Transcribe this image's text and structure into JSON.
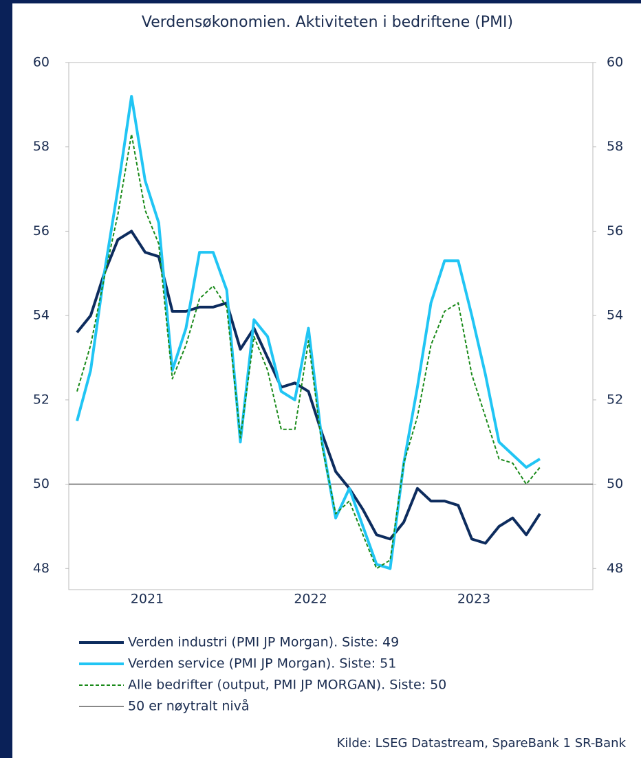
{
  "chart_data": {
    "type": "line",
    "title": "Verdensøkonomien. Aktiviteten i bedriftene (PMI)",
    "source": "Kilde: LSEG Datastream, SpareBank 1 SR-Bank",
    "categories": [
      null,
      null,
      null,
      null,
      null,
      "2021",
      null,
      null,
      null,
      null,
      null,
      null,
      null,
      null,
      null,
      null,
      null,
      "2022",
      null,
      null,
      null,
      null,
      null,
      null,
      null,
      null,
      null,
      null,
      null,
      "2023",
      null,
      null,
      null,
      null,
      null
    ],
    "series": [
      {
        "name": "Verden industri (PMI JP Morgan). Siste: 49",
        "color": "#0d2c5e",
        "line_style": "solid",
        "values": [
          53.6,
          54.0,
          55.0,
          55.8,
          56.0,
          55.5,
          55.4,
          54.1,
          54.1,
          54.2,
          54.2,
          54.3,
          53.2,
          53.7,
          53.0,
          52.3,
          52.4,
          52.2,
          51.2,
          50.3,
          49.9,
          49.4,
          48.8,
          48.7,
          49.1,
          49.9,
          49.6,
          49.6,
          49.5,
          48.7,
          48.6,
          49.0,
          49.2,
          48.8,
          49.3
        ]
      },
      {
        "name": "Verden service (PMI JP Morgan). Siste: 51",
        "color": "#21c5f4",
        "line_style": "solid",
        "values": [
          51.5,
          52.7,
          55.0,
          57.0,
          59.2,
          57.2,
          56.2,
          52.7,
          53.7,
          55.5,
          55.5,
          54.6,
          51.0,
          53.9,
          53.5,
          52.2,
          52.0,
          53.7,
          51.0,
          49.2,
          49.9,
          49.0,
          48.1,
          48.0,
          50.5,
          52.3,
          54.3,
          55.3,
          55.3,
          54.0,
          52.6,
          51.0,
          50.7,
          50.4,
          50.6
        ]
      },
      {
        "name": "Alle bedrifter (output, PMI JP MORGAN). Siste: 50",
        "color": "#1a8a1a",
        "line_style": "dashed",
        "values": [
          52.2,
          53.3,
          54.9,
          56.4,
          58.3,
          56.5,
          55.7,
          52.5,
          53.3,
          54.4,
          54.7,
          54.2,
          51.1,
          53.5,
          52.7,
          51.3,
          51.3,
          53.4,
          50.9,
          49.3,
          49.6,
          48.8,
          48.0,
          48.2,
          50.5,
          51.6,
          53.3,
          54.1,
          54.3,
          52.6,
          51.6,
          50.6,
          50.5,
          50.0,
          50.4
        ]
      }
    ],
    "reference_line": {
      "name": "50 er nøytralt nivå",
      "value": 50,
      "color": "#888888"
    },
    "ylim": [
      47.5,
      60
    ],
    "yticks": [
      48,
      50,
      52,
      54,
      56,
      58,
      60
    ],
    "y2lim": [
      47.5,
      60
    ],
    "y2ticks": [
      48,
      50,
      52,
      54,
      56,
      58,
      60
    ]
  }
}
